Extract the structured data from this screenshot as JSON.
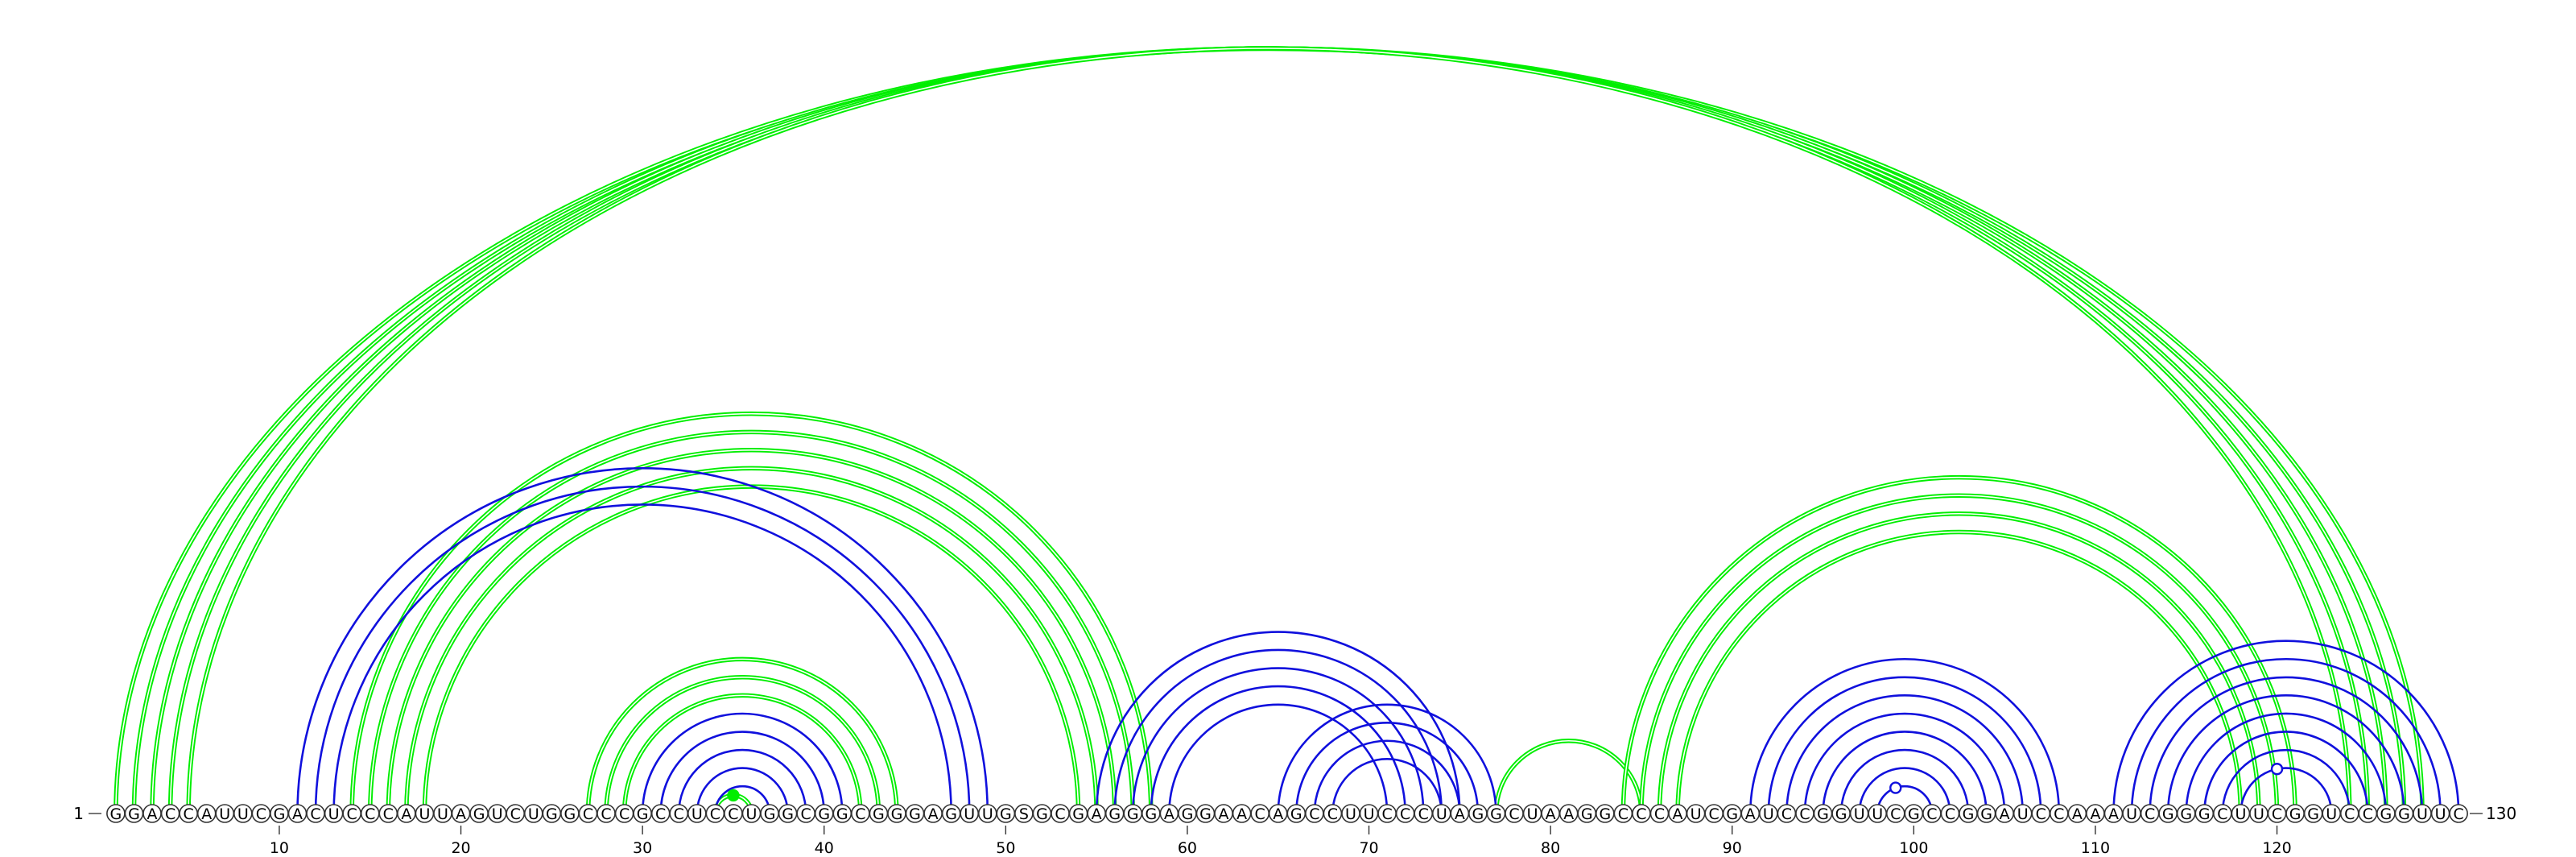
{
  "sequence": "GGACCAUUCGACUCCCAUUAGUCUGGCCCGCCUCCUGGCGGCGGGAGUUGSGCGAGGGAGGAACAGCCUUCCCUAGGCUAAGGCCCAUCGAUCCGGUUCGCCGGAUCCAAAUCGGGCUUCGGUCCGGUUC",
  "start_label": "1",
  "end_label": "130",
  "ticks": [
    10,
    20,
    30,
    40,
    50,
    60,
    70,
    80,
    90,
    100,
    110,
    120
  ],
  "colors": {
    "green": "#00ee00",
    "blue": "#1010dd"
  },
  "arcs": [
    {
      "color": "green",
      "pairs": [
        [
          1,
          128
        ],
        [
          2,
          127
        ],
        [
          3,
          126
        ],
        [
          4,
          125
        ],
        [
          5,
          124
        ]
      ]
    },
    {
      "color": "green",
      "pairs": [
        [
          14,
          58
        ],
        [
          15,
          57
        ],
        [
          16,
          56
        ],
        [
          17,
          55
        ],
        [
          18,
          54
        ]
      ]
    },
    {
      "color": "green",
      "pairs": [
        [
          27,
          44
        ],
        [
          28,
          43
        ],
        [
          29,
          42
        ]
      ]
    },
    {
      "color": "green",
      "pairs": [
        [
          34,
          36
        ]
      ]
    },
    {
      "color": "green",
      "pairs": [
        [
          77,
          85
        ]
      ]
    },
    {
      "color": "green",
      "pairs": [
        [
          84,
          121
        ],
        [
          85,
          120
        ],
        [
          86,
          119
        ],
        [
          87,
          118
        ]
      ]
    },
    {
      "color": "blue",
      "pairs": [
        [
          11,
          49
        ],
        [
          12,
          48
        ],
        [
          13,
          47
        ]
      ]
    },
    {
      "color": "blue",
      "pairs": [
        [
          30,
          41
        ],
        [
          31,
          40
        ],
        [
          32,
          39
        ],
        [
          33,
          38
        ],
        [
          34,
          37
        ]
      ]
    },
    {
      "color": "blue",
      "pairs": [
        [
          55,
          75
        ],
        [
          56,
          74
        ],
        [
          57,
          73
        ],
        [
          58,
          72
        ],
        [
          59,
          71
        ]
      ]
    },
    {
      "color": "blue",
      "pairs": [
        [
          65,
          77
        ],
        [
          66,
          76
        ],
        [
          67,
          75
        ],
        [
          68,
          74
        ]
      ]
    },
    {
      "color": "blue",
      "pairs": [
        [
          91,
          108
        ],
        [
          92,
          107
        ],
        [
          93,
          106
        ],
        [
          94,
          105
        ],
        [
          95,
          104
        ],
        [
          96,
          103
        ],
        [
          97,
          102
        ],
        [
          98,
          101
        ]
      ]
    },
    {
      "color": "blue",
      "pairs": [
        [
          111,
          130
        ],
        [
          112,
          129
        ],
        [
          113,
          128
        ],
        [
          114,
          127
        ],
        [
          115,
          126
        ],
        [
          116,
          125
        ],
        [
          117,
          124
        ],
        [
          118,
          123
        ]
      ]
    }
  ],
  "markers": [
    {
      "position": 35,
      "style": "filled",
      "color": "green"
    },
    {
      "position": 99,
      "style": "open",
      "color": "blue"
    },
    {
      "position": 120,
      "style": "open",
      "color": "blue"
    }
  ]
}
